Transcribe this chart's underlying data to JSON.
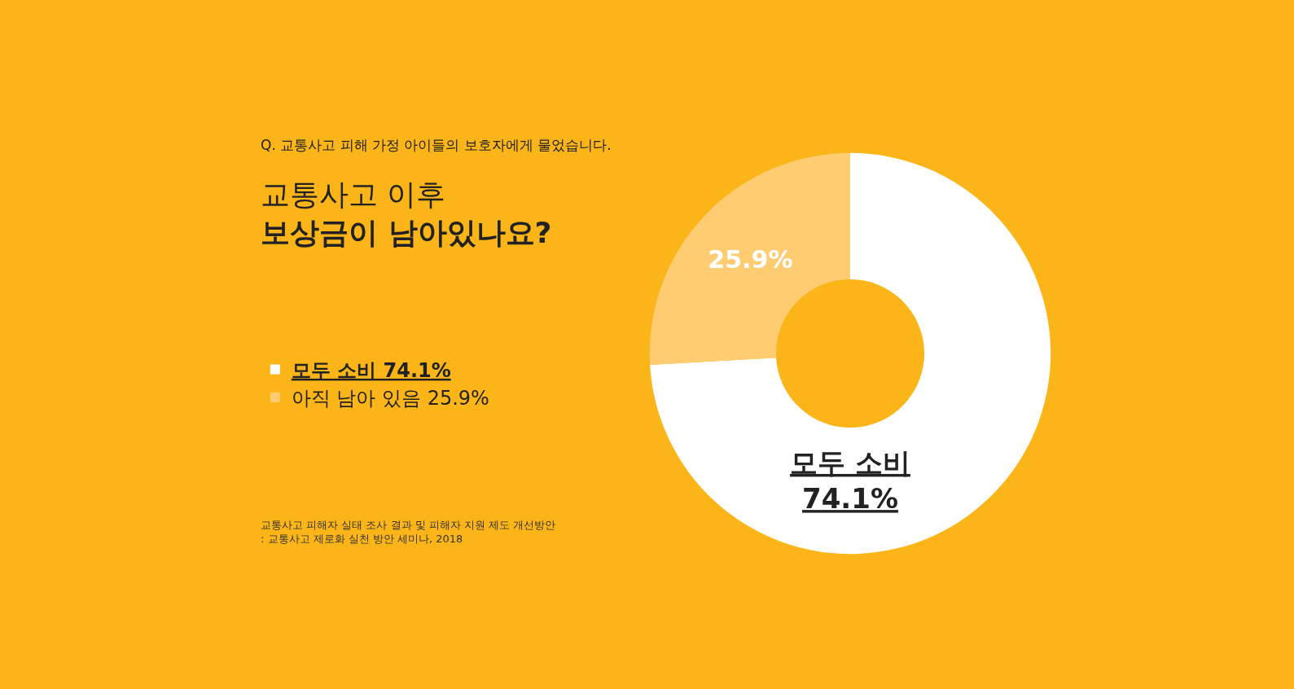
{
  "chart_data": {
    "type": "donut",
    "subtitle": "Q. 교통사고 피해 가정 아이들의 보호자에게 물었습니다.",
    "title": "교통사고 이후\n보상금이 남아있나요?",
    "categories": [
      "모두 소비 74.1%",
      "아직 남아 있음 25.9%"
    ],
    "values": [
      74.1,
      25.9
    ],
    "value_labels": [
      "모두 소비\n74.1%",
      "25.9%"
    ],
    "colors": [
      "#ffffff",
      "#ffcc72"
    ],
    "legend": "left",
    "annotations": [
      "교통사고 피해자 실태 조사 결과 및 피해자 지원 제도 개선방안\n: 교통사고 제로화 실천 방안 세미나, 2018"
    ]
  }
}
